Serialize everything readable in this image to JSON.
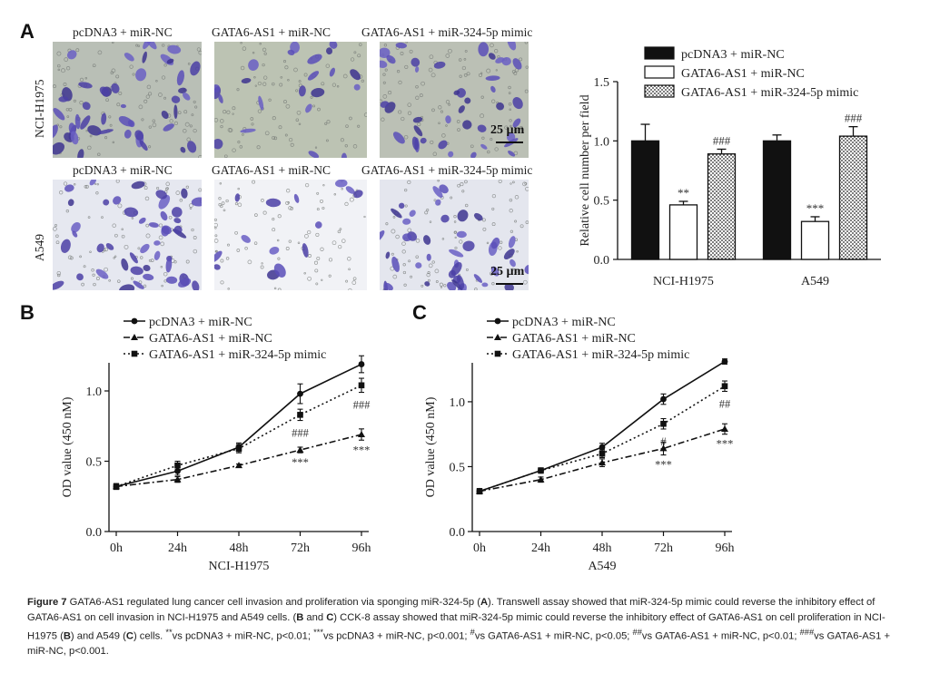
{
  "panels": {
    "A": "A",
    "B": "B",
    "C": "C"
  },
  "panel_a": {
    "column_labels": [
      "pcDNA3 + miR-NC",
      "GATA6-AS1 + miR-NC",
      "GATA6-AS1 + miR-324-5p mimic"
    ],
    "row_labels": [
      "NCI-H1975",
      "A549"
    ],
    "scale_bar": "25 µm"
  },
  "chart_data": [
    {
      "id": "A-bar",
      "type": "bar",
      "categories": [
        "NCI-H1975",
        "A549"
      ],
      "series": [
        {
          "name": "pcDNA3 + miR-NC",
          "values": [
            1.0,
            1.0
          ],
          "errors": [
            0.14,
            0.05
          ],
          "fill": "#111111",
          "stars": [
            "",
            ""
          ]
        },
        {
          "name": "GATA6-AS1 + miR-NC",
          "values": [
            0.46,
            0.32
          ],
          "errors": [
            0.03,
            0.04
          ],
          "fill": "#ffffff",
          "stars": [
            "**",
            "***"
          ]
        },
        {
          "name": "GATA6-AS1 + miR-324-5p mimic",
          "values": [
            0.89,
            1.04
          ],
          "errors": [
            0.04,
            0.08
          ],
          "fill": "dots",
          "stars": [
            "###",
            "###"
          ]
        }
      ],
      "ylabel": "Relative cell number per field",
      "ylim": [
        0,
        1.5
      ],
      "yticks": [
        "0.0",
        "0.5",
        "1.0",
        "1.5"
      ],
      "legend": "top-right"
    },
    {
      "id": "B-line",
      "type": "line",
      "x": [
        "0h",
        "24h",
        "48h",
        "72h",
        "96h"
      ],
      "series": [
        {
          "name": "pcDNA3 + miR-NC",
          "values": [
            0.32,
            0.43,
            0.6,
            0.98,
            1.19
          ],
          "errors": [
            0.02,
            0.03,
            0.03,
            0.07,
            0.06
          ],
          "marker": "circle",
          "dash": "solid",
          "stars": [
            "",
            "",
            "",
            "",
            ""
          ]
        },
        {
          "name": "GATA6-AS1 + miR-NC",
          "values": [
            0.32,
            0.37,
            0.47,
            0.58,
            0.69
          ],
          "errors": [
            0.02,
            0.02,
            0.01,
            0.02,
            0.04
          ],
          "marker": "triangle",
          "dash": "dashdot",
          "stars": [
            "",
            "",
            "",
            "***",
            "***"
          ]
        },
        {
          "name": "GATA6-AS1 + miR-324-5p mimic",
          "values": [
            0.32,
            0.47,
            0.59,
            0.83,
            1.04
          ],
          "errors": [
            0.02,
            0.03,
            0.03,
            0.04,
            0.05
          ],
          "marker": "square",
          "dash": "dotted",
          "stars": [
            "",
            "",
            "",
            "###",
            "###"
          ]
        }
      ],
      "xlabel": "NCI-H1975",
      "ylabel": "OD value (450 nM)",
      "ylim": [
        0,
        1.2
      ],
      "yticks": [
        "0.0",
        "0.5",
        "1.0"
      ]
    },
    {
      "id": "C-line",
      "type": "line",
      "x": [
        "0h",
        "24h",
        "48h",
        "72h",
        "96h"
      ],
      "series": [
        {
          "name": "pcDNA3 + miR-NC",
          "values": [
            0.31,
            0.47,
            0.65,
            1.02,
            1.31
          ],
          "errors": [
            0.02,
            0.02,
            0.03,
            0.04,
            0.02
          ],
          "marker": "circle",
          "dash": "solid",
          "stars": [
            "",
            "",
            "",
            "",
            ""
          ]
        },
        {
          "name": "GATA6-AS1 + miR-NC",
          "values": [
            0.31,
            0.4,
            0.53,
            0.64,
            0.79
          ],
          "errors": [
            0.02,
            0.02,
            0.03,
            0.05,
            0.04
          ],
          "marker": "triangle",
          "dash": "dashdot",
          "stars": [
            "",
            "",
            "",
            "***",
            "***"
          ]
        },
        {
          "name": "GATA6-AS1 + miR-324-5p mimic",
          "values": [
            0.31,
            0.47,
            0.6,
            0.83,
            1.12
          ],
          "errors": [
            0.02,
            0.02,
            0.03,
            0.04,
            0.04
          ],
          "marker": "square",
          "dash": "dotted",
          "stars": [
            "",
            "",
            "",
            "#",
            "##"
          ]
        }
      ],
      "xlabel": "A549",
      "ylabel": "OD value (450 nM)",
      "ylim": [
        0,
        1.3
      ],
      "yticks": [
        "0.0",
        "0.5",
        "1.0"
      ]
    }
  ],
  "caption": {
    "title": "Figure 7",
    "p1": " GATA6-AS1 regulated lung cancer cell invasion and proliferation via sponging miR-324-5p (",
    "ref_a": "A",
    "p2": "). Transwell assay showed that miR-324-5p mimic could reverse the inhibitory effect of GATA6-AS1 on cell invasion in NCI-H1975 and A549 cells. (",
    "ref_b1": "B",
    "and1": " and ",
    "ref_c1": "C",
    "p3": ") CCK-8 assay showed that miR-324-5p mimic could reverse the inhibitory effect of GATA6-AS1 on cell proliferation in NCI-H1975 (",
    "ref_b2": "B",
    "and2": ") and A549 (",
    "ref_c2": "C",
    "p4": ") cells. ",
    "sup1": "**",
    "t1": "vs pcDNA3 + miR-NC, p<0.01; ",
    "sup2": "***",
    "t2": "vs pcDNA3 + miR-NC, p<0.001; ",
    "sup3": "#",
    "t3": "vs GATA6-AS1 + miR-NC, p<0.05; ",
    "sup4": "##",
    "t4": "vs GATA6-AS1 + miR-NC, p<0.01; ",
    "sup5": "###",
    "t5": "vs GATA6-AS1 + miR-NC, p<0.001."
  }
}
